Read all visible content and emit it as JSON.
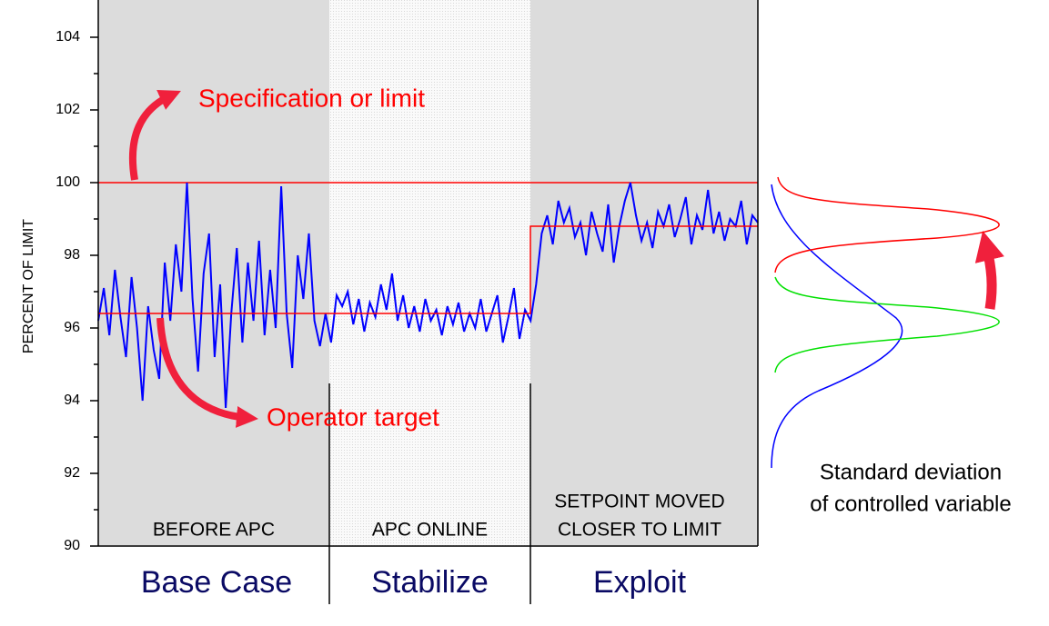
{
  "chart_data": {
    "type": "line",
    "ylabel": "PERCENT OF LIMIT",
    "ylim": [
      90,
      105
    ],
    "yticks": [
      90,
      92,
      94,
      96,
      98,
      100,
      102,
      104
    ],
    "yminorticks": [
      91,
      93,
      95,
      97,
      99,
      101,
      103
    ],
    "series": [
      {
        "color": "#0000ff",
        "values": [
          96.2,
          97.1,
          95.8,
          97.6,
          96.3,
          95.2,
          97.4,
          96.0,
          94.0,
          96.6,
          95.4,
          94.6,
          97.8,
          96.2,
          98.3,
          97.0,
          100.0,
          96.8,
          94.8,
          97.5,
          98.6,
          95.2,
          97.2,
          93.8,
          96.4,
          98.2,
          95.6,
          97.8,
          96.2,
          98.4,
          95.8,
          97.6,
          96.0,
          99.9,
          96.4,
          94.9,
          98.0,
          96.8,
          98.6,
          96.2,
          95.5,
          96.4,
          95.6,
          96.9,
          96.6,
          97.0,
          96.1,
          96.8,
          95.9,
          96.7,
          96.3,
          97.2,
          96.5,
          97.5,
          96.2,
          96.9,
          96.0,
          96.6,
          95.9,
          96.8,
          96.2,
          96.5,
          95.8,
          96.6,
          96.1,
          96.7,
          95.9,
          96.4,
          96.0,
          96.8,
          95.9,
          96.4,
          96.9,
          95.6,
          96.3,
          97.1,
          95.7,
          96.5,
          96.2,
          97.2,
          98.6,
          99.1,
          98.3,
          99.5,
          98.9,
          99.3,
          98.5,
          98.9,
          98.0,
          99.2,
          98.6,
          98.1,
          99.4,
          97.8,
          98.8,
          99.5,
          100.0,
          99.1,
          98.4,
          98.9,
          98.2,
          99.2,
          98.8,
          99.4,
          98.5,
          99.0,
          99.6,
          98.3,
          99.1,
          98.7,
          99.8,
          98.6,
          99.2,
          98.4,
          99.0,
          98.8,
          99.5,
          98.3,
          99.1,
          98.9
        ]
      }
    ],
    "reference_lines": [
      {
        "label": "Specification or limit",
        "value": 100,
        "color": "#ff0000"
      },
      {
        "label": "Operator target",
        "value": 96.4,
        "color": "#ff0000"
      }
    ],
    "setpoint": 98.8,
    "phases": [
      {
        "note": [
          "BEFORE APC"
        ],
        "label": "Base Case"
      },
      {
        "note": [
          "APC ONLINE"
        ],
        "label": "Stabilize"
      },
      {
        "note": [
          "SETPOINT MOVED",
          "CLOSER TO LIMIT"
        ],
        "label": "Exploit"
      }
    ],
    "annotation": [
      "Standard deviation",
      "of controlled variable"
    ]
  }
}
